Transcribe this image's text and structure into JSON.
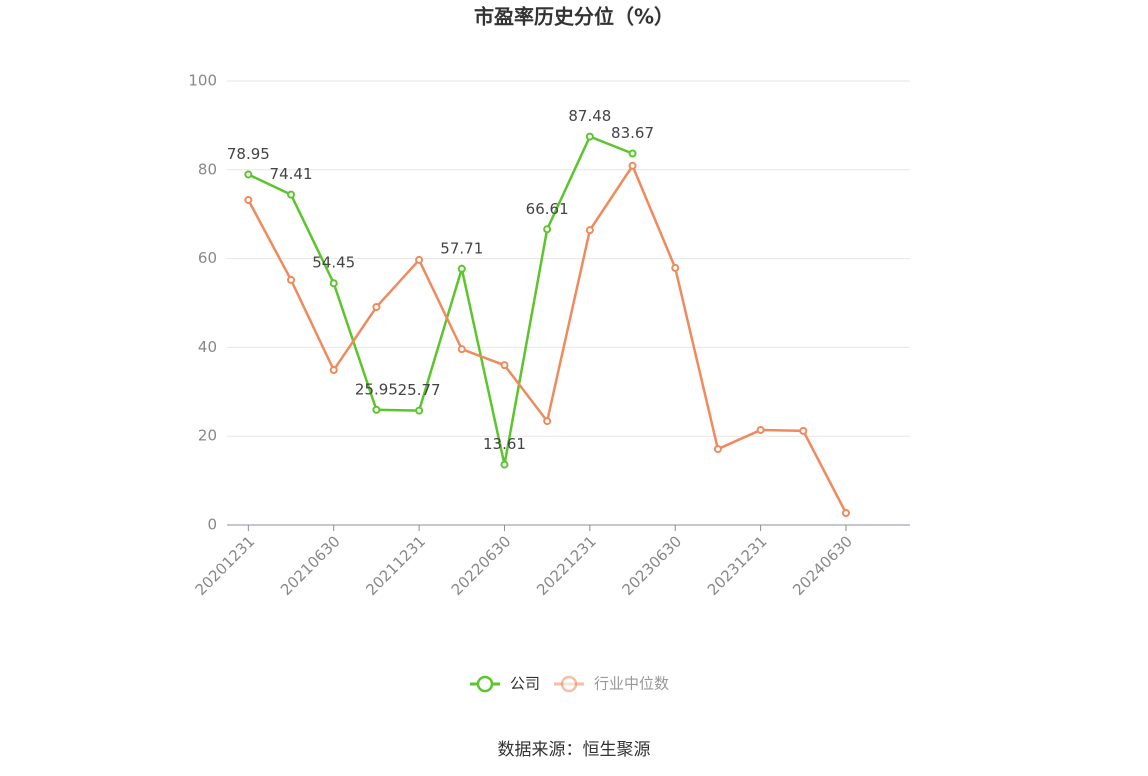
{
  "chart_data": {
    "type": "line",
    "title": "市盈率历史分位（%）",
    "categories": [
      "20201231",
      null,
      "20210630",
      null,
      "20211231",
      null,
      "20220630",
      null,
      "20221231",
      null,
      "20230630",
      null,
      "20231231",
      null,
      "20240630",
      null
    ],
    "series": [
      {
        "name": "公司",
        "color": "#5cc52e",
        "values": [
          78.95,
          74.41,
          54.45,
          25.95,
          25.77,
          57.71,
          13.61,
          66.61,
          87.48,
          83.67,
          null,
          null,
          null,
          null,
          null,
          null
        ],
        "show_labels": true
      },
      {
        "name": "行业中位数",
        "color": "#f08a5d",
        "values": [
          73.2,
          55.2,
          34.9,
          49.1,
          59.7,
          39.6,
          36.0,
          23.4,
          66.4,
          80.9,
          57.9,
          17.1,
          21.4,
          21.2,
          2.7,
          null
        ],
        "show_labels": false
      }
    ],
    "ylim": [
      0,
      100
    ],
    "yticks": [
      0,
      20,
      40,
      60,
      80,
      100
    ],
    "grid": true,
    "legend": "bottom",
    "source": "数据来源：恒生聚源"
  }
}
